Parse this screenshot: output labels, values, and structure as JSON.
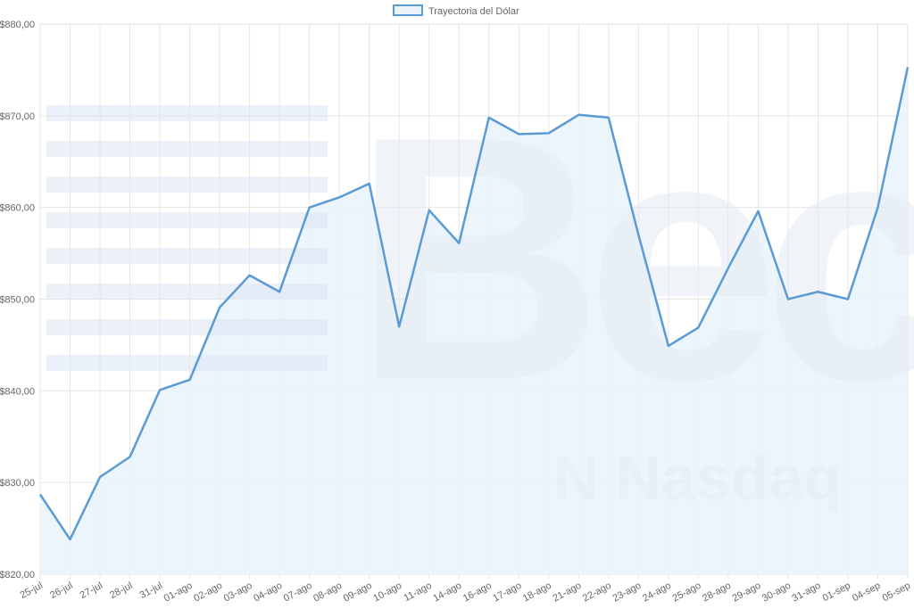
{
  "chart_data": {
    "type": "area",
    "legend": {
      "label": "Trayectoria del Dólar",
      "placement": "top-center"
    },
    "categories": [
      "25-jul",
      "26-jul",
      "27-jul",
      "28-jul",
      "31-jul",
      "01-ago",
      "02-ago",
      "03-ago",
      "04-ago",
      "07-ago",
      "08-ago",
      "09-ago",
      "10-ago",
      "11-ago",
      "14-ago",
      "16-ago",
      "17-ago",
      "18-ago",
      "21-ago",
      "22-ago",
      "23-ago",
      "24-ago",
      "25-ago",
      "28-ago",
      "29-ago",
      "30-ago",
      "31-ago",
      "01-sep",
      "04-sep",
      "05-sep"
    ],
    "series": [
      {
        "name": "Trayectoria del Dólar",
        "values": [
          828.7,
          823.8,
          830.6,
          832.8,
          840.1,
          841.2,
          849.1,
          852.6,
          850.8,
          860.0,
          861.1,
          862.6,
          847.0,
          859.7,
          856.1,
          869.8,
          868.0,
          868.1,
          870.1,
          869.8,
          857.0,
          844.9,
          846.9,
          853.4,
          859.6,
          850.0,
          850.8,
          850.0,
          860.0,
          875.3
        ]
      }
    ],
    "yticks": [
      "$820,00",
      "$830,00",
      "$840,00",
      "$850,00",
      "$860,00",
      "$870,00",
      "$880,00"
    ],
    "ylim": [
      820,
      880
    ],
    "grid": true,
    "colors": {
      "line": "#5b9bd5",
      "fill": "#eaf3fc"
    }
  }
}
